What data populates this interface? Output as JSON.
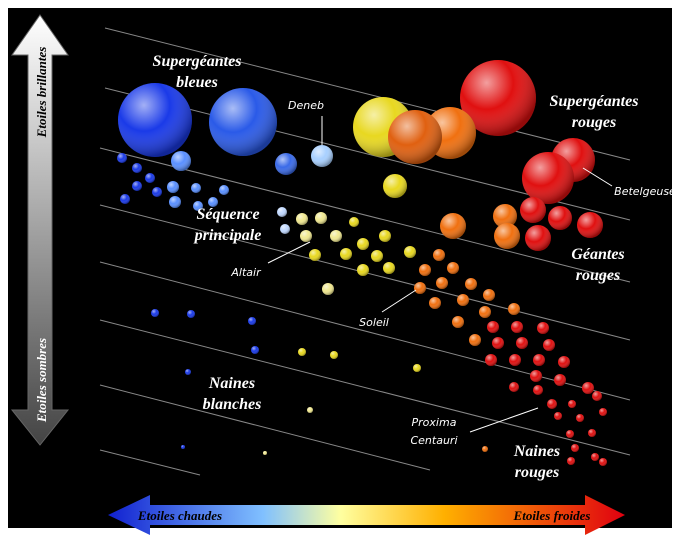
{
  "axes": {
    "top": "Etoiles brillantes",
    "bottom": "Etoiles sombres",
    "left": "Etoiles chaudes",
    "right": "Etoiles froides"
  },
  "regions": [
    {
      "lines": [
        "Supergéantes",
        "bleues"
      ]
    },
    {
      "lines": [
        "Supergéantes",
        "rouges"
      ]
    },
    {
      "lines": [
        "Séquence",
        "principale"
      ]
    },
    {
      "lines": [
        "Géantes",
        "rouges"
      ]
    },
    {
      "lines": [
        "Naines",
        "blanches"
      ]
    },
    {
      "lines": [
        "Naines",
        "rouges"
      ]
    }
  ],
  "stars": [
    {
      "lines": [
        "Deneb"
      ]
    },
    {
      "lines": [
        "Betelgeuse"
      ]
    },
    {
      "lines": [
        "Altair"
      ]
    },
    {
      "lines": [
        "Soleil"
      ]
    },
    {
      "lines": [
        "Proxima",
        "Centauri"
      ]
    }
  ]
}
